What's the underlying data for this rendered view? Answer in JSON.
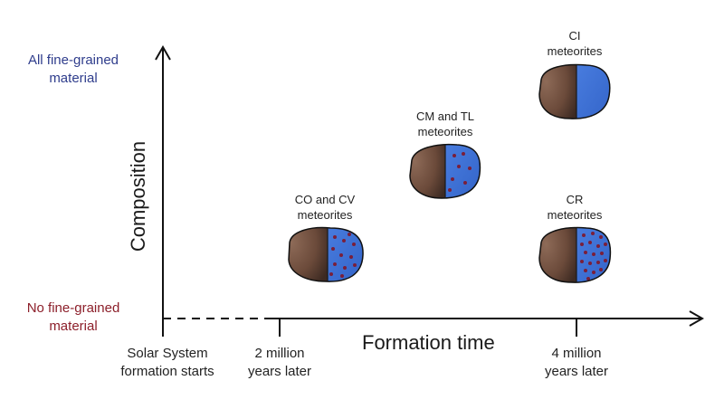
{
  "colors": {
    "blue_text": "#2f3d8c",
    "red_text": "#8c1f2a",
    "matrix_blue": "#3c6fd6",
    "rock_brown": "#6b4a3a",
    "chondrule_dot": "#7a1f3a"
  },
  "y_axis": {
    "title": "Composition",
    "top_label": [
      "All fine-grained",
      "material"
    ],
    "bottom_label": [
      "No fine-grained",
      "material"
    ]
  },
  "x_axis": {
    "title": "Formation time",
    "ticks": [
      {
        "lines": [
          "Solar System",
          "formation starts"
        ]
      },
      {
        "lines": [
          "2 million",
          "years later"
        ]
      },
      {
        "lines": [
          "4 million",
          "years later"
        ]
      }
    ]
  },
  "meteorites": [
    {
      "id": "co-cv",
      "lines": [
        "CO and CV",
        "meteorites"
      ],
      "dots": "many",
      "matrix": "partial"
    },
    {
      "id": "cm-tl",
      "lines": [
        "CM and TL",
        "meteorites"
      ],
      "dots": "few",
      "matrix": "partial"
    },
    {
      "id": "ci",
      "lines": [
        "CI",
        "meteorites"
      ],
      "dots": "none",
      "matrix": "full"
    },
    {
      "id": "cr",
      "lines": [
        "CR",
        "meteorites"
      ],
      "dots": "many",
      "matrix": "partial"
    }
  ]
}
